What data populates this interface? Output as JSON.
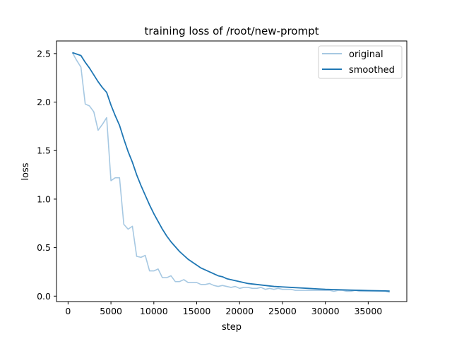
{
  "chart_data": {
    "type": "line",
    "title": "training loss of /root/new-prompt",
    "xlabel": "step",
    "ylabel": "loss",
    "xlim": [
      -1350,
      39500
    ],
    "ylim": [
      -0.056,
      2.63
    ],
    "xticks": [
      0,
      5000,
      10000,
      15000,
      20000,
      25000,
      30000,
      35000
    ],
    "yticks": [
      0.0,
      0.5,
      1.0,
      1.5,
      2.0,
      2.5
    ],
    "ytick_labels": [
      "0.0",
      "0.5",
      "1.0",
      "1.5",
      "2.0",
      "2.5"
    ],
    "grid": false,
    "legend_position": "top-right",
    "series": [
      {
        "name": "original",
        "color": "#a6c8e2",
        "x": [
          500,
          1000,
          1500,
          2000,
          2500,
          3000,
          3500,
          4000,
          4500,
          5000,
          5500,
          6000,
          6500,
          7000,
          7500,
          8000,
          8500,
          9000,
          9500,
          10000,
          10500,
          11000,
          11500,
          12000,
          12500,
          13000,
          13500,
          14000,
          14500,
          15000,
          15500,
          16000,
          16500,
          17000,
          17500,
          18000,
          18500,
          19000,
          19500,
          20000,
          20500,
          21000,
          21500,
          22000,
          22500,
          23000,
          23500,
          24000,
          24500,
          25000,
          25500,
          26000,
          26500,
          27000,
          27500,
          28000,
          28500,
          29000,
          29500,
          30000,
          30500,
          31000,
          31500,
          32000,
          32500,
          33000,
          33500,
          34000,
          34500,
          35000,
          35500,
          36000,
          36500,
          37000,
          37500
        ],
        "y": [
          2.51,
          2.43,
          2.36,
          1.98,
          1.96,
          1.9,
          1.71,
          1.77,
          1.84,
          1.19,
          1.22,
          1.22,
          0.74,
          0.69,
          0.72,
          0.41,
          0.4,
          0.42,
          0.26,
          0.26,
          0.28,
          0.19,
          0.19,
          0.21,
          0.15,
          0.15,
          0.17,
          0.14,
          0.14,
          0.14,
          0.12,
          0.12,
          0.13,
          0.11,
          0.1,
          0.11,
          0.1,
          0.09,
          0.1,
          0.08,
          0.09,
          0.09,
          0.08,
          0.08,
          0.09,
          0.07,
          0.08,
          0.07,
          0.08,
          0.07,
          0.07,
          0.07,
          0.06,
          0.06,
          0.06,
          0.06,
          0.06,
          0.06,
          0.06,
          0.06,
          0.06,
          0.05,
          0.06,
          0.06,
          0.05,
          0.05,
          0.06,
          0.05,
          0.05,
          0.05,
          0.05,
          0.05,
          0.05,
          0.05,
          0.04
        ]
      },
      {
        "name": "smoothed",
        "color": "#1f77b4",
        "x": [
          500,
          1500,
          2000,
          2500,
          3000,
          3500,
          4000,
          4500,
          5000,
          5500,
          6000,
          6500,
          7000,
          7500,
          8000,
          8500,
          9000,
          9500,
          10000,
          10500,
          11000,
          11500,
          12000,
          12500,
          13000,
          13500,
          14000,
          14500,
          15000,
          15500,
          16000,
          16500,
          17000,
          17500,
          18000,
          18500,
          19000,
          19500,
          20000,
          21000,
          22000,
          23000,
          24000,
          25000,
          26000,
          27000,
          28000,
          29000,
          30000,
          31000,
          32000,
          33000,
          34000,
          35000,
          36000,
          37000,
          37500
        ],
        "y": [
          2.51,
          2.48,
          2.41,
          2.35,
          2.28,
          2.21,
          2.15,
          2.1,
          1.97,
          1.86,
          1.76,
          1.62,
          1.49,
          1.38,
          1.25,
          1.14,
          1.04,
          0.94,
          0.85,
          0.77,
          0.69,
          0.62,
          0.56,
          0.51,
          0.46,
          0.42,
          0.38,
          0.35,
          0.32,
          0.29,
          0.27,
          0.25,
          0.23,
          0.21,
          0.2,
          0.18,
          0.17,
          0.16,
          0.15,
          0.13,
          0.12,
          0.11,
          0.1,
          0.095,
          0.09,
          0.085,
          0.08,
          0.075,
          0.07,
          0.068,
          0.065,
          0.062,
          0.06,
          0.058,
          0.056,
          0.054,
          0.052
        ]
      }
    ]
  }
}
